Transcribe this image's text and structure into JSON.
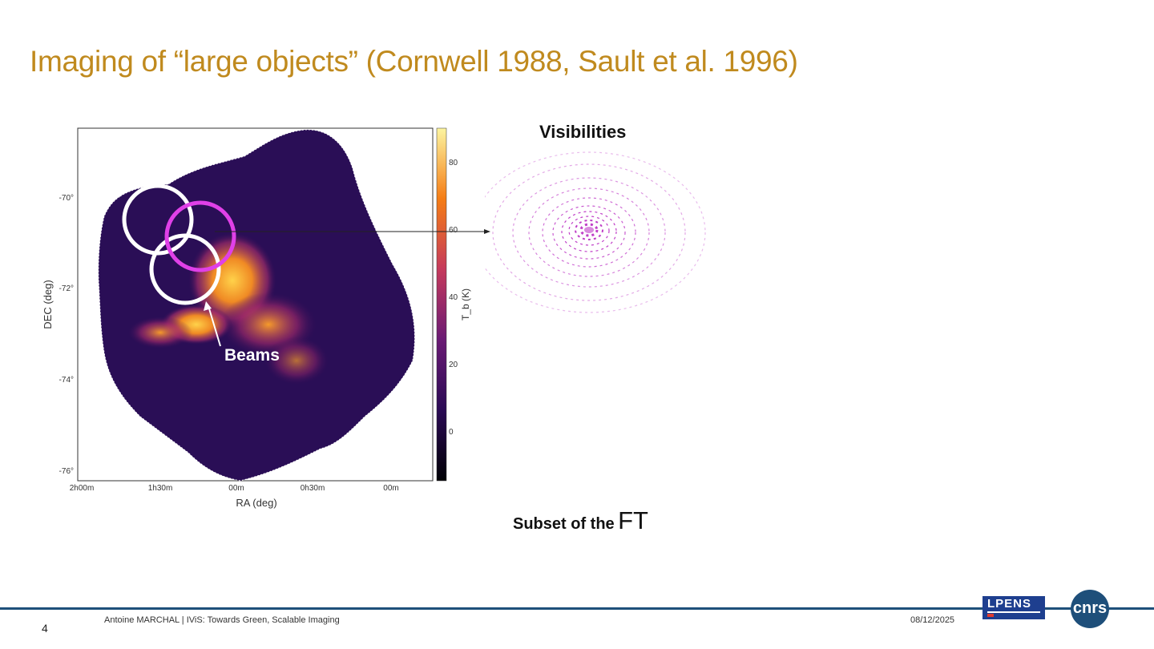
{
  "slide": {
    "title": "Imaging of “large objects” (Cornwell 1988, Sault et al. 1996)",
    "visibilities_label": "Visibilities",
    "subset_prefix": "Subset of the",
    "subset_suffix": "FT",
    "beams_label": "Beams"
  },
  "figure": {
    "ylabel": "DEC (deg)",
    "xlabel": "RA (deg)",
    "yticks": [
      "-70°",
      "-72°",
      "-74°",
      "-76°"
    ],
    "xticks": [
      "2h00m",
      "1h30m",
      "00m",
      "0h30m",
      "00m"
    ],
    "colorbar_label": "T_b (K)",
    "colorbar_ticks": [
      "80",
      "60",
      "40",
      "20",
      "0"
    ]
  },
  "footer": {
    "page_number": "4",
    "author_talk": "Antoine MARCHAL   | IViS: Towards Green, Scalable Imaging",
    "date": "08/12/2025",
    "lpens_logo": "LPENS",
    "cnrs_logo": "cnrs"
  },
  "colors": {
    "title": "#c08a1e",
    "beam_highlight": "#e040e8",
    "visibilities": "#c040c8",
    "footer_line": "#1e4f7a"
  }
}
